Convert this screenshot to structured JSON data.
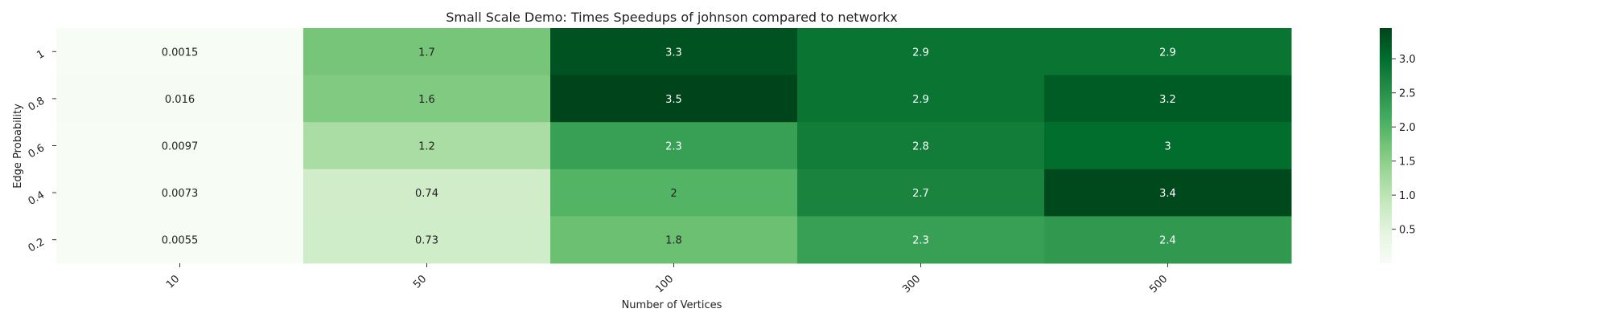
{
  "chart_data": {
    "type": "heatmap",
    "title": "Small Scale Demo: Times Speedups of johnson compared to networkx",
    "xlabel": "Number of Vertices",
    "ylabel": "Edge Probability",
    "x": [
      "10",
      "50",
      "100",
      "300",
      "500"
    ],
    "y": [
      "1",
      "0.8",
      "0.6",
      "0.4",
      "0.2"
    ],
    "values": [
      [
        0.0015,
        1.7,
        3.3,
        2.9,
        2.9
      ],
      [
        0.016,
        1.6,
        3.5,
        2.9,
        3.2
      ],
      [
        0.0097,
        1.2,
        2.3,
        2.8,
        3.0
      ],
      [
        0.0073,
        0.74,
        2.0,
        2.7,
        3.4
      ],
      [
        0.0055,
        0.73,
        1.8,
        2.3,
        2.4
      ]
    ],
    "cell_labels": [
      [
        "0.0015",
        "1.7",
        "3.3",
        "2.9",
        "2.9"
      ],
      [
        "0.016",
        "1.6",
        "3.5",
        "2.9",
        "3.2"
      ],
      [
        "0.0097",
        "1.2",
        "2.3",
        "2.8",
        "3"
      ],
      [
        "0.0073",
        "0.74",
        "2",
        "2.7",
        "3.4"
      ],
      [
        "0.0055",
        "0.73",
        "1.8",
        "2.3",
        "2.4"
      ]
    ],
    "colormap": "Greens",
    "colorbar": {
      "range": [
        0.0015,
        3.45
      ],
      "ticks": [
        "0.5",
        "1.0",
        "1.5",
        "2.0",
        "2.5",
        "3.0"
      ]
    },
    "grid": false,
    "legend": "colorbar-right"
  }
}
